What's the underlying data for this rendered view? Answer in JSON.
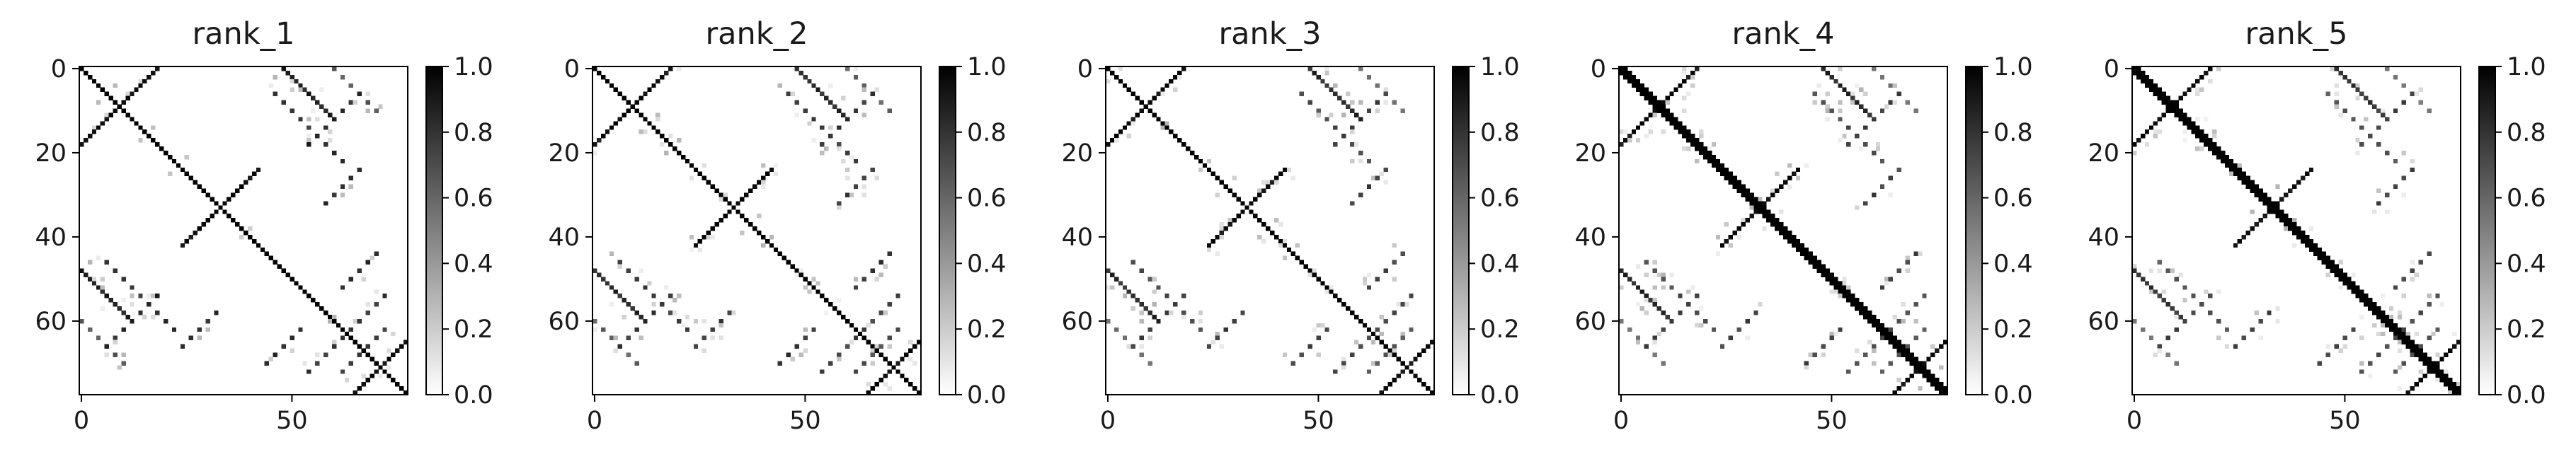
{
  "chart_data": [
    {
      "type": "heatmap",
      "title": "rank_1",
      "n": 78,
      "x_ticks": [
        "0",
        "50"
      ],
      "x_tick_values": [
        0,
        50
      ],
      "y_ticks": [
        "0",
        "20",
        "40",
        "60"
      ],
      "y_tick_values": [
        0,
        20,
        40,
        60
      ],
      "colorbar_ticks": [
        "0.0",
        "0.2",
        "0.4",
        "0.6",
        "0.8",
        "1.0"
      ],
      "colorbar_range": [
        0.0,
        1.0
      ],
      "colormap": "Greys",
      "noise_level": 0.1,
      "seed": 11,
      "bands": [
        {
          "kind": "diag",
          "from": 0,
          "to": 77,
          "width": 1.3,
          "value": 1.0
        },
        {
          "kind": "anti",
          "sum": 18,
          "from": 0,
          "to": 18,
          "width": 1.2,
          "value": 1.0
        },
        {
          "kind": "anti",
          "sum": 66,
          "from": 24,
          "to": 42,
          "width": 1.0,
          "value": 1.0
        },
        {
          "kind": "anti",
          "sum": 142,
          "from": 64,
          "to": 77,
          "width": 1.3,
          "value": 1.0
        },
        {
          "kind": "anti",
          "sum": 72,
          "from": 5,
          "to": 18,
          "width": 0.8,
          "value": 0.9,
          "dashed": true
        },
        {
          "kind": "anti",
          "sum": 90,
          "from": 23,
          "to": 32,
          "width": 0.8,
          "value": 0.9,
          "dashed": true
        },
        {
          "kind": "anti",
          "sum": 114,
          "from": 43,
          "to": 52,
          "width": 0.8,
          "value": 0.9,
          "dashed": true
        },
        {
          "kind": "anti",
          "sum": 126,
          "from": 54,
          "to": 64,
          "width": 0.8,
          "value": 0.85,
          "dashed": true
        },
        {
          "kind": "anti",
          "sum": 134,
          "from": 62,
          "to": 72,
          "width": 0.8,
          "value": 0.8,
          "dashed": true
        },
        {
          "kind": "diag",
          "offset": 48,
          "from": 0,
          "to": 12,
          "width": 0.9,
          "value": 0.95
        },
        {
          "kind": "diag",
          "offset": 40,
          "from": 12,
          "to": 22,
          "width": 0.7,
          "value": 0.85,
          "dashed": true
        },
        {
          "kind": "diag",
          "offset": -40,
          "from": 45,
          "to": 60,
          "width": 0.7,
          "value": 0.85,
          "dashed": true
        },
        {
          "kind": "diag",
          "offset": 60,
          "from": 0,
          "to": 10,
          "width": 0.6,
          "value": 0.7,
          "dashed": true
        }
      ]
    },
    {
      "type": "heatmap",
      "title": "rank_2",
      "n": 78,
      "x_ticks": [
        "0",
        "50"
      ],
      "x_tick_values": [
        0,
        50
      ],
      "y_ticks": [
        "0",
        "20",
        "40",
        "60"
      ],
      "y_tick_values": [
        0,
        20,
        40,
        60
      ],
      "colorbar_ticks": [
        "0.0",
        "0.2",
        "0.4",
        "0.6",
        "0.8",
        "1.0"
      ],
      "colorbar_range": [
        0.0,
        1.0
      ],
      "colormap": "Greys",
      "noise_level": 0.12,
      "seed": 23,
      "bands": [
        {
          "kind": "diag",
          "from": 0,
          "to": 77,
          "width": 1.4,
          "value": 1.0
        },
        {
          "kind": "anti",
          "sum": 18,
          "from": 0,
          "to": 18,
          "width": 1.3,
          "value": 1.0
        },
        {
          "kind": "anti",
          "sum": 66,
          "from": 24,
          "to": 42,
          "width": 1.0,
          "value": 1.0
        },
        {
          "kind": "anti",
          "sum": 142,
          "from": 64,
          "to": 77,
          "width": 1.3,
          "value": 1.0
        },
        {
          "kind": "anti",
          "sum": 72,
          "from": 5,
          "to": 18,
          "width": 0.8,
          "value": 0.85,
          "dashed": true
        },
        {
          "kind": "anti",
          "sum": 90,
          "from": 23,
          "to": 32,
          "width": 0.8,
          "value": 0.85,
          "dashed": true
        },
        {
          "kind": "anti",
          "sum": 114,
          "from": 43,
          "to": 52,
          "width": 0.8,
          "value": 0.85,
          "dashed": true
        },
        {
          "kind": "anti",
          "sum": 126,
          "from": 54,
          "to": 64,
          "width": 0.8,
          "value": 0.8,
          "dashed": true
        },
        {
          "kind": "anti",
          "sum": 134,
          "from": 62,
          "to": 72,
          "width": 0.8,
          "value": 0.75,
          "dashed": true
        },
        {
          "kind": "diag",
          "offset": 48,
          "from": 0,
          "to": 12,
          "width": 0.9,
          "value": 0.9
        },
        {
          "kind": "diag",
          "offset": 40,
          "from": 12,
          "to": 22,
          "width": 0.7,
          "value": 0.8,
          "dashed": true
        },
        {
          "kind": "diag",
          "offset": -40,
          "from": 45,
          "to": 60,
          "width": 0.7,
          "value": 0.8,
          "dashed": true
        },
        {
          "kind": "diag",
          "offset": 60,
          "from": 0,
          "to": 10,
          "width": 0.6,
          "value": 0.65,
          "dashed": true
        }
      ]
    },
    {
      "type": "heatmap",
      "title": "rank_3",
      "n": 78,
      "x_ticks": [
        "0",
        "50"
      ],
      "x_tick_values": [
        0,
        50
      ],
      "y_ticks": [
        "0",
        "20",
        "40",
        "60"
      ],
      "y_tick_values": [
        0,
        20,
        40,
        60
      ],
      "colorbar_ticks": [
        "0.0",
        "0.2",
        "0.4",
        "0.6",
        "0.8",
        "1.0"
      ],
      "colorbar_range": [
        0.0,
        1.0
      ],
      "colormap": "Greys",
      "noise_level": 0.14,
      "seed": 37,
      "bands": [
        {
          "kind": "diag",
          "from": 0,
          "to": 77,
          "width": 1.4,
          "value": 1.0
        },
        {
          "kind": "anti",
          "sum": 18,
          "from": 0,
          "to": 18,
          "width": 1.3,
          "value": 1.0
        },
        {
          "kind": "anti",
          "sum": 66,
          "from": 24,
          "to": 42,
          "width": 1.1,
          "value": 1.0
        },
        {
          "kind": "anti",
          "sum": 142,
          "from": 64,
          "to": 77,
          "width": 1.3,
          "value": 1.0
        },
        {
          "kind": "anti",
          "sum": 72,
          "from": 5,
          "to": 18,
          "width": 0.8,
          "value": 0.8,
          "dashed": true
        },
        {
          "kind": "anti",
          "sum": 90,
          "from": 23,
          "to": 32,
          "width": 0.8,
          "value": 0.8,
          "dashed": true
        },
        {
          "kind": "anti",
          "sum": 114,
          "from": 43,
          "to": 52,
          "width": 0.8,
          "value": 0.8,
          "dashed": true
        },
        {
          "kind": "anti",
          "sum": 126,
          "from": 54,
          "to": 64,
          "width": 0.8,
          "value": 0.75,
          "dashed": true
        },
        {
          "kind": "anti",
          "sum": 134,
          "from": 62,
          "to": 72,
          "width": 0.8,
          "value": 0.7,
          "dashed": true
        },
        {
          "kind": "diag",
          "offset": 48,
          "from": 0,
          "to": 12,
          "width": 0.9,
          "value": 0.9
        },
        {
          "kind": "diag",
          "offset": 40,
          "from": 12,
          "to": 22,
          "width": 0.7,
          "value": 0.75,
          "dashed": true
        },
        {
          "kind": "diag",
          "offset": -40,
          "from": 45,
          "to": 60,
          "width": 0.7,
          "value": 0.75,
          "dashed": true
        },
        {
          "kind": "diag",
          "offset": 60,
          "from": 0,
          "to": 10,
          "width": 0.6,
          "value": 0.6,
          "dashed": true
        }
      ]
    },
    {
      "type": "heatmap",
      "title": "rank_4",
      "n": 78,
      "x_ticks": [
        "0",
        "50"
      ],
      "x_tick_values": [
        0,
        50
      ],
      "y_ticks": [
        "0",
        "20",
        "40",
        "60"
      ],
      "y_tick_values": [
        0,
        20,
        40,
        60
      ],
      "colorbar_ticks": [
        "0.0",
        "0.2",
        "0.4",
        "0.6",
        "0.8",
        "1.0"
      ],
      "colorbar_range": [
        0.0,
        1.0
      ],
      "colormap": "Greys",
      "noise_level": 0.14,
      "seed": 53,
      "bands": [
        {
          "kind": "diag",
          "from": 0,
          "to": 77,
          "width": 1.5,
          "value": 1.0
        },
        {
          "kind": "anti",
          "sum": 18,
          "from": 0,
          "to": 18,
          "width": 1.3,
          "value": 1.0
        },
        {
          "kind": "anti",
          "sum": 66,
          "from": 24,
          "to": 42,
          "width": 1.1,
          "value": 1.0
        },
        {
          "kind": "anti",
          "sum": 142,
          "from": 64,
          "to": 77,
          "width": 1.3,
          "value": 1.0
        },
        {
          "kind": "anti",
          "sum": 72,
          "from": 5,
          "to": 18,
          "width": 0.8,
          "value": 0.8,
          "dashed": true
        },
        {
          "kind": "anti",
          "sum": 90,
          "from": 23,
          "to": 32,
          "width": 0.8,
          "value": 0.8,
          "dashed": true
        },
        {
          "kind": "anti",
          "sum": 114,
          "from": 43,
          "to": 52,
          "width": 0.8,
          "value": 0.8,
          "dashed": true
        },
        {
          "kind": "anti",
          "sum": 126,
          "from": 54,
          "to": 64,
          "width": 0.8,
          "value": 0.75,
          "dashed": true
        },
        {
          "kind": "anti",
          "sum": 134,
          "from": 62,
          "to": 72,
          "width": 0.8,
          "value": 0.7,
          "dashed": true
        },
        {
          "kind": "diag",
          "offset": 48,
          "from": 0,
          "to": 12,
          "width": 0.9,
          "value": 0.9
        },
        {
          "kind": "diag",
          "offset": 40,
          "from": 12,
          "to": 22,
          "width": 0.7,
          "value": 0.75,
          "dashed": true
        },
        {
          "kind": "diag",
          "offset": -40,
          "from": 45,
          "to": 60,
          "width": 0.7,
          "value": 0.75,
          "dashed": true
        },
        {
          "kind": "diag",
          "offset": 60,
          "from": 0,
          "to": 10,
          "width": 0.6,
          "value": 0.6,
          "dashed": true
        }
      ]
    },
    {
      "type": "heatmap",
      "title": "rank_5",
      "n": 78,
      "x_ticks": [
        "0",
        "50"
      ],
      "x_tick_values": [
        0,
        50
      ],
      "y_ticks": [
        "0",
        "20",
        "40",
        "60"
      ],
      "y_tick_values": [
        0,
        20,
        40,
        60
      ],
      "colorbar_ticks": [
        "0.0",
        "0.2",
        "0.4",
        "0.6",
        "0.8",
        "1.0"
      ],
      "colorbar_range": [
        0.0,
        1.0
      ],
      "colormap": "Greys",
      "noise_level": 0.15,
      "seed": 71,
      "bands": [
        {
          "kind": "diag",
          "from": 0,
          "to": 77,
          "width": 1.5,
          "value": 1.0
        },
        {
          "kind": "anti",
          "sum": 18,
          "from": 0,
          "to": 18,
          "width": 1.3,
          "value": 1.0
        },
        {
          "kind": "anti",
          "sum": 66,
          "from": 24,
          "to": 42,
          "width": 1.1,
          "value": 1.0
        },
        {
          "kind": "anti",
          "sum": 142,
          "from": 64,
          "to": 77,
          "width": 1.3,
          "value": 1.0
        },
        {
          "kind": "anti",
          "sum": 72,
          "from": 5,
          "to": 18,
          "width": 0.8,
          "value": 0.8,
          "dashed": true
        },
        {
          "kind": "anti",
          "sum": 90,
          "from": 23,
          "to": 32,
          "width": 0.8,
          "value": 0.8,
          "dashed": true
        },
        {
          "kind": "anti",
          "sum": 114,
          "from": 43,
          "to": 52,
          "width": 0.8,
          "value": 0.8,
          "dashed": true
        },
        {
          "kind": "anti",
          "sum": 126,
          "from": 54,
          "to": 64,
          "width": 0.8,
          "value": 0.75,
          "dashed": true
        },
        {
          "kind": "anti",
          "sum": 134,
          "from": 62,
          "to": 72,
          "width": 0.8,
          "value": 0.7,
          "dashed": true
        },
        {
          "kind": "diag",
          "offset": 48,
          "from": 0,
          "to": 12,
          "width": 0.9,
          "value": 0.85
        },
        {
          "kind": "diag",
          "offset": 40,
          "from": 12,
          "to": 22,
          "width": 0.7,
          "value": 0.7,
          "dashed": true
        },
        {
          "kind": "diag",
          "offset": -40,
          "from": 45,
          "to": 60,
          "width": 0.7,
          "value": 0.7,
          "dashed": true
        },
        {
          "kind": "diag",
          "offset": 60,
          "from": 0,
          "to": 10,
          "width": 0.6,
          "value": 0.55,
          "dashed": true
        }
      ]
    }
  ]
}
